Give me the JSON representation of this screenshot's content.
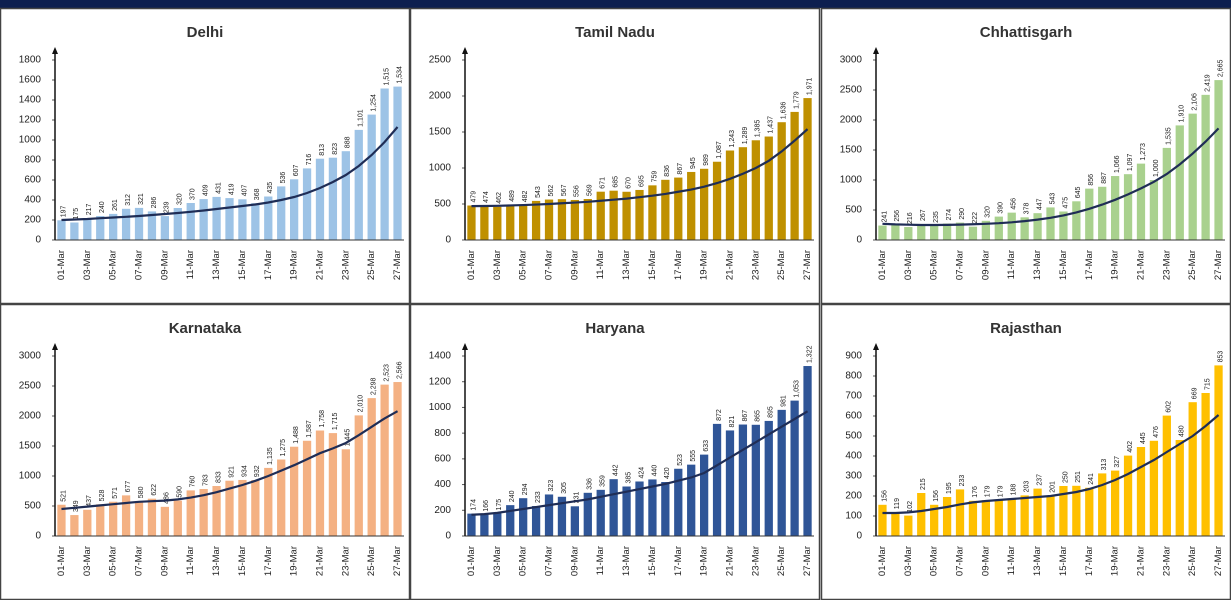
{
  "chart_data": [
    {
      "type": "bar",
      "title": "Delhi",
      "color": "#9dc3e6",
      "categories": [
        "01-Mar",
        null,
        "03-Mar",
        null,
        "05-Mar",
        null,
        "07-Mar",
        null,
        "09-Mar",
        null,
        "11-Mar",
        null,
        "13-Mar",
        null,
        "15-Mar",
        null,
        "17-Mar",
        null,
        "19-Mar",
        null,
        "21-Mar",
        null,
        "23-Mar",
        null,
        "25-Mar",
        null,
        "27-Mar"
      ],
      "values": [
        197,
        175,
        217,
        240,
        261,
        312,
        321,
        286,
        239,
        320,
        370,
        409,
        431,
        419,
        407,
        368,
        435,
        536,
        607,
        716,
        813,
        823,
        888,
        1101,
        1254,
        1515,
        1534
      ],
      "value_labels": [
        "197",
        "175",
        "217",
        "240",
        "261",
        "312",
        "321",
        "286",
        "239",
        "320",
        "370",
        "409",
        "431",
        "419",
        "407",
        "368",
        "435",
        "536",
        "607",
        "716",
        "813",
        "823",
        "888",
        "1,101",
        "1,254",
        "1,515",
        "1,534"
      ],
      "trend": {
        "color": "#1f2d56",
        "values": [
          200,
          205,
          210,
          218,
          225,
          232,
          240,
          250,
          260,
          270,
          282,
          295,
          310,
          325,
          340,
          355,
          375,
          400,
          430,
          470,
          520,
          580,
          650,
          740,
          850,
          980,
          1130
        ]
      },
      "ylim": [
        0,
        1800
      ],
      "yticks": [
        0,
        200,
        400,
        600,
        800,
        1000,
        1200,
        1400,
        1600,
        1800
      ]
    },
    {
      "type": "bar",
      "title": "Tamil Nadu",
      "color": "#bf9000",
      "categories": [
        "01-Mar",
        null,
        "03-Mar",
        null,
        "05-Mar",
        null,
        "07-Mar",
        null,
        "09-Mar",
        null,
        "11-Mar",
        null,
        "13-Mar",
        null,
        "15-Mar",
        null,
        "17-Mar",
        null,
        "19-Mar",
        null,
        "21-Mar",
        null,
        "23-Mar",
        null,
        "25-Mar",
        null,
        "27-Mar"
      ],
      "values": [
        479,
        474,
        462,
        489,
        482,
        543,
        562,
        567,
        556,
        569,
        671,
        685,
        670,
        695,
        759,
        836,
        867,
        945,
        989,
        1087,
        1243,
        1289,
        1385,
        1437,
        1636,
        1779,
        1971
      ],
      "value_labels": [
        "479",
        "474",
        "462",
        "489",
        "482",
        "543",
        "562",
        "567",
        "556",
        "569",
        "671",
        "685",
        "670",
        "695",
        "759",
        "836",
        "867",
        "945",
        "989",
        "1,087",
        "1,243",
        "1,289",
        "1,385",
        "1,437",
        "1,636",
        "1,779",
        "1,971"
      ],
      "trend": {
        "color": "#1f2d56",
        "values": [
          470,
          472,
          475,
          480,
          485,
          492,
          500,
          510,
          520,
          530,
          545,
          560,
          575,
          595,
          615,
          640,
          670,
          700,
          740,
          790,
          850,
          920,
          1000,
          1100,
          1230,
          1380,
          1540
        ]
      },
      "ylim": [
        0,
        2500
      ],
      "yticks": [
        0,
        500,
        1000,
        1500,
        2000,
        2500
      ]
    },
    {
      "type": "bar",
      "title": "Chhattisgarh",
      "color": "#a9d18e",
      "categories": [
        "01-Mar",
        null,
        "03-Mar",
        null,
        "05-Mar",
        null,
        "07-Mar",
        null,
        "09-Mar",
        null,
        "11-Mar",
        null,
        "13-Mar",
        null,
        "15-Mar",
        null,
        "17-Mar",
        null,
        "19-Mar",
        null,
        "21-Mar",
        null,
        "23-Mar",
        null,
        "25-Mar",
        null,
        "27-Mar"
      ],
      "values": [
        241,
        256,
        216,
        267,
        235,
        274,
        290,
        222,
        320,
        390,
        456,
        378,
        447,
        543,
        475,
        645,
        856,
        887,
        1066,
        1097,
        1273,
        1000,
        1535,
        1910,
        2106,
        2419,
        2665
      ],
      "value_labels": [
        "241",
        "256",
        "216",
        "267",
        "235",
        "274",
        "290",
        "222",
        "320",
        "390",
        "456",
        "378",
        "447",
        "543",
        "475",
        "645",
        "856",
        "887",
        "1,066",
        "1,097",
        "1,273",
        "1,000",
        "1,535",
        "1,910",
        "2,106",
        "2,419",
        "2,665"
      ],
      "trend": {
        "color": "#1f2d56",
        "values": [
          270,
          260,
          255,
          250,
          250,
          252,
          256,
          262,
          270,
          280,
          295,
          315,
          340,
          370,
          410,
          460,
          520,
          590,
          670,
          760,
          860,
          970,
          1100,
          1260,
          1440,
          1640,
          1860
        ]
      },
      "ylim": [
        0,
        3000
      ],
      "yticks": [
        0,
        500,
        1000,
        1500,
        2000,
        2500,
        3000
      ]
    },
    {
      "type": "bar",
      "title": "Karnataka",
      "color": "#f4b183",
      "categories": [
        "01-Mar",
        null,
        "03-Mar",
        null,
        "05-Mar",
        null,
        "07-Mar",
        null,
        "09-Mar",
        null,
        "11-Mar",
        null,
        "13-Mar",
        null,
        "15-Mar",
        null,
        "17-Mar",
        null,
        "19-Mar",
        null,
        "21-Mar",
        null,
        "23-Mar",
        null,
        "25-Mar",
        null,
        "27-Mar"
      ],
      "values": [
        521,
        349,
        437,
        528,
        571,
        677,
        580,
        622,
        486,
        590,
        760,
        783,
        833,
        921,
        934,
        932,
        1135,
        1275,
        1488,
        1587,
        1758,
        1715,
        1445,
        2010,
        2298,
        2523,
        2566
      ],
      "value_labels": [
        "521",
        "349",
        "437",
        "528",
        "571",
        "677",
        "580",
        "622",
        "486",
        "590",
        "760",
        "783",
        "833",
        "921",
        "934",
        "932",
        "1,135",
        "1,275",
        "1,488",
        "1,587",
        "1,758",
        "1,715",
        "1,445",
        "2,010",
        "2,298",
        "2,523",
        "2,566"
      ],
      "trend": {
        "color": "#1f2d56",
        "values": [
          450,
          470,
          490,
          510,
          530,
          550,
          570,
          580,
          590,
          610,
          640,
          680,
          730,
          790,
          850,
          920,
          1000,
          1090,
          1180,
          1280,
          1380,
          1460,
          1550,
          1680,
          1820,
          1960,
          2080
        ]
      },
      "ylim": [
        0,
        3000
      ],
      "yticks": [
        0,
        500,
        1000,
        1500,
        2000,
        2500,
        3000
      ]
    },
    {
      "type": "bar",
      "title": "Haryana",
      "color": "#2f5597",
      "categories": [
        "01-Mar",
        null,
        "03-Mar",
        null,
        "05-Mar",
        null,
        "07-Mar",
        null,
        "09-Mar",
        null,
        "11-Mar",
        null,
        "13-Mar",
        null,
        "15-Mar",
        null,
        "17-Mar",
        null,
        "19-Mar",
        null,
        "21-Mar",
        null,
        "23-Mar",
        null,
        "25-Mar",
        null,
        "27-Mar"
      ],
      "values": [
        174,
        166,
        175,
        240,
        294,
        233,
        323,
        305,
        231,
        336,
        359,
        442,
        385,
        424,
        440,
        420,
        523,
        555,
        633,
        872,
        821,
        867,
        865,
        895,
        981,
        1053,
        1322
      ],
      "value_labels": [
        "174",
        "166",
        "175",
        "240",
        "294",
        "233",
        "323",
        "305",
        "231",
        "336",
        "359",
        "442",
        "385",
        "424",
        "440",
        "420",
        "523",
        "555",
        "633",
        "872",
        "821",
        "867",
        "865",
        "895",
        "981",
        "1,053",
        "1,322"
      ],
      "trend": {
        "color": "#1f2d56",
        "values": [
          165,
          170,
          180,
          195,
          210,
          225,
          240,
          255,
          270,
          285,
          305,
          325,
          345,
          365,
          385,
          405,
          430,
          455,
          490,
          550,
          610,
          670,
          730,
          790,
          850,
          910,
          970
        ]
      },
      "ylim": [
        0,
        1400
      ],
      "yticks": [
        0,
        200,
        400,
        600,
        800,
        1000,
        1200,
        1400
      ]
    },
    {
      "type": "bar",
      "title": "Rajasthan",
      "color": "#ffc000",
      "categories": [
        "01-Mar",
        null,
        "03-Mar",
        null,
        "05-Mar",
        null,
        "07-Mar",
        null,
        "09-Mar",
        null,
        "11-Mar",
        null,
        "13-Mar",
        null,
        "15-Mar",
        null,
        "17-Mar",
        null,
        "19-Mar",
        null,
        "21-Mar",
        null,
        "23-Mar",
        null,
        "25-Mar",
        null,
        "27-Mar"
      ],
      "values": [
        156,
        119,
        102,
        215,
        156,
        195,
        233,
        176,
        179,
        179,
        188,
        203,
        237,
        201,
        250,
        251,
        241,
        313,
        327,
        402,
        445,
        476,
        602,
        480,
        669,
        715,
        853
      ],
      "trend": {
        "color": "#1f2d56",
        "values": [
          115,
          115,
          118,
          125,
          135,
          145,
          158,
          168,
          175,
          180,
          185,
          190,
          195,
          200,
          210,
          220,
          235,
          255,
          280,
          310,
          345,
          380,
          420,
          460,
          500,
          550,
          605
        ]
      },
      "ylim": [
        0,
        900
      ],
      "yticks": [
        0,
        100,
        200,
        300,
        400,
        500,
        600,
        700,
        800,
        900
      ]
    }
  ]
}
